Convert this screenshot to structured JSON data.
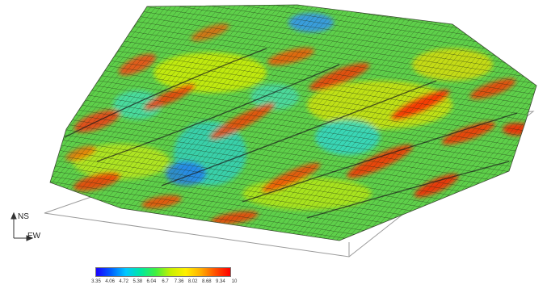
{
  "orientation": {
    "ns_label": "NS",
    "ew_label": "EW"
  },
  "colorbar": {
    "ticks": [
      "3.35",
      "4.06",
      "4.72",
      "5.38",
      "6.04",
      "6.7",
      "7.36",
      "8.02",
      "8.68",
      "9.34",
      "10"
    ],
    "min": 3.35,
    "max": 10,
    "colors": [
      "#1a00ff",
      "#0060ff",
      "#00c8ff",
      "#00e8a0",
      "#40f040",
      "#c8f000",
      "#fff000",
      "#ffb000",
      "#ff5000",
      "#ff0000"
    ]
  },
  "surface": {
    "base_color": "#5ed04a",
    "grid_color": "#1d2a14",
    "plane_color": "#9a9a9a"
  }
}
